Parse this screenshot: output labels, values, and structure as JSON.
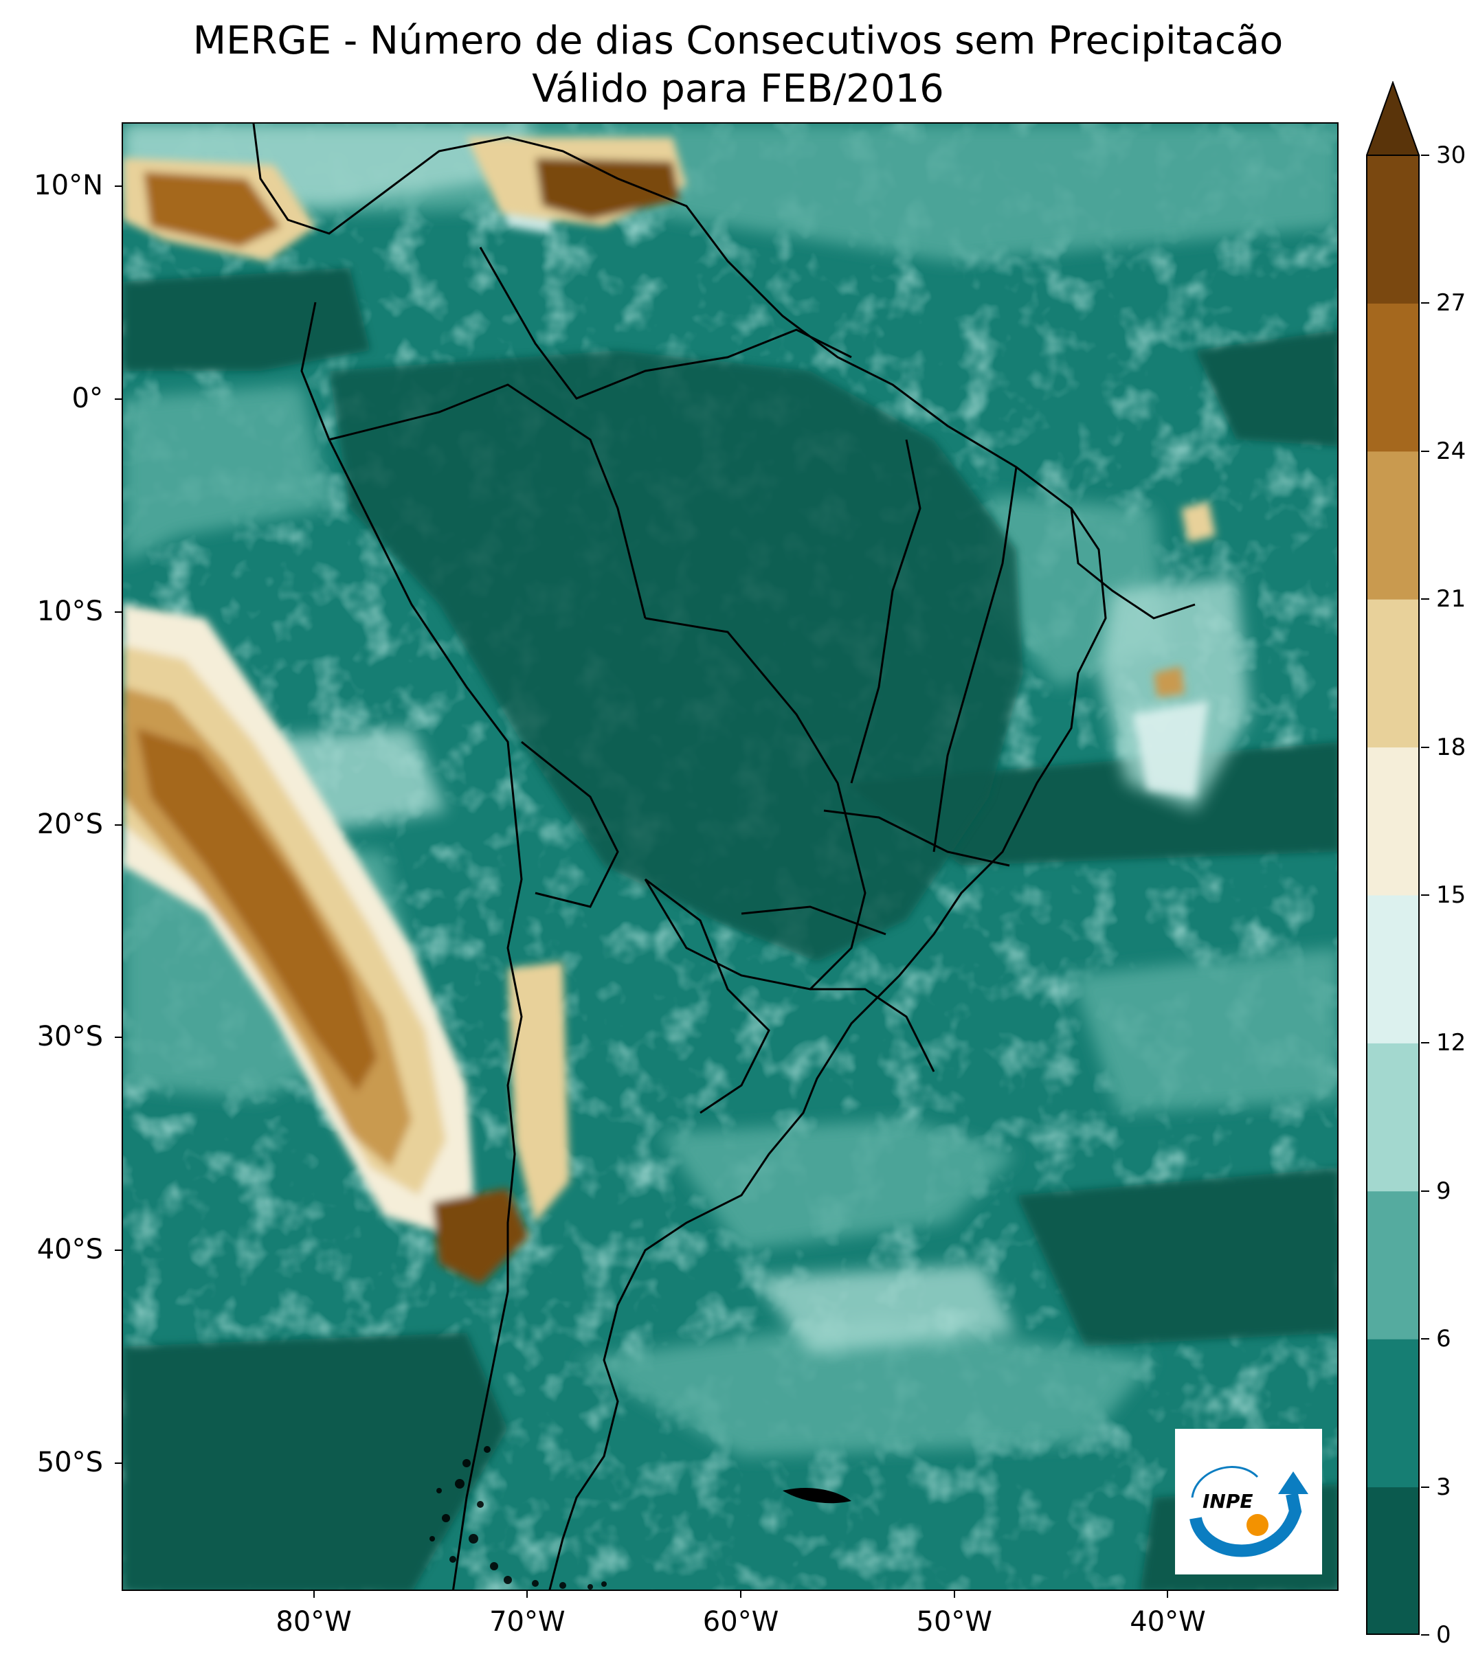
{
  "title": {
    "line1": "MERGE - Número de dias Consecutivos sem Precipitacão",
    "line2": "Válido para FEB/2016"
  },
  "map": {
    "region": "South America",
    "lat_range": [
      -56,
      13
    ],
    "lon_range": [
      -89,
      -32
    ],
    "lat_ticks": [
      "10°N",
      "0°",
      "10°S",
      "20°S",
      "30°S",
      "40°S",
      "50°S"
    ],
    "lon_ticks": [
      "80°W",
      "70°W",
      "60°W",
      "50°W",
      "40°W"
    ]
  },
  "colorbar": {
    "levels": [
      "0",
      "3",
      "6",
      "9",
      "12",
      "15",
      "18",
      "21",
      "24",
      "27",
      "30"
    ],
    "colors": [
      "#0b5a4e",
      "#167e73",
      "#55ab9f",
      "#a3d8cf",
      "#dcf1ee",
      "#f5eed9",
      "#e8d19a",
      "#c99a4f",
      "#a5681e",
      "#7a4810",
      "#5a340a"
    ],
    "extend": "max"
  },
  "logo": {
    "text": "INPE",
    "colors": {
      "arc": "#0b7dc1",
      "dot": "#f39200"
    }
  }
}
